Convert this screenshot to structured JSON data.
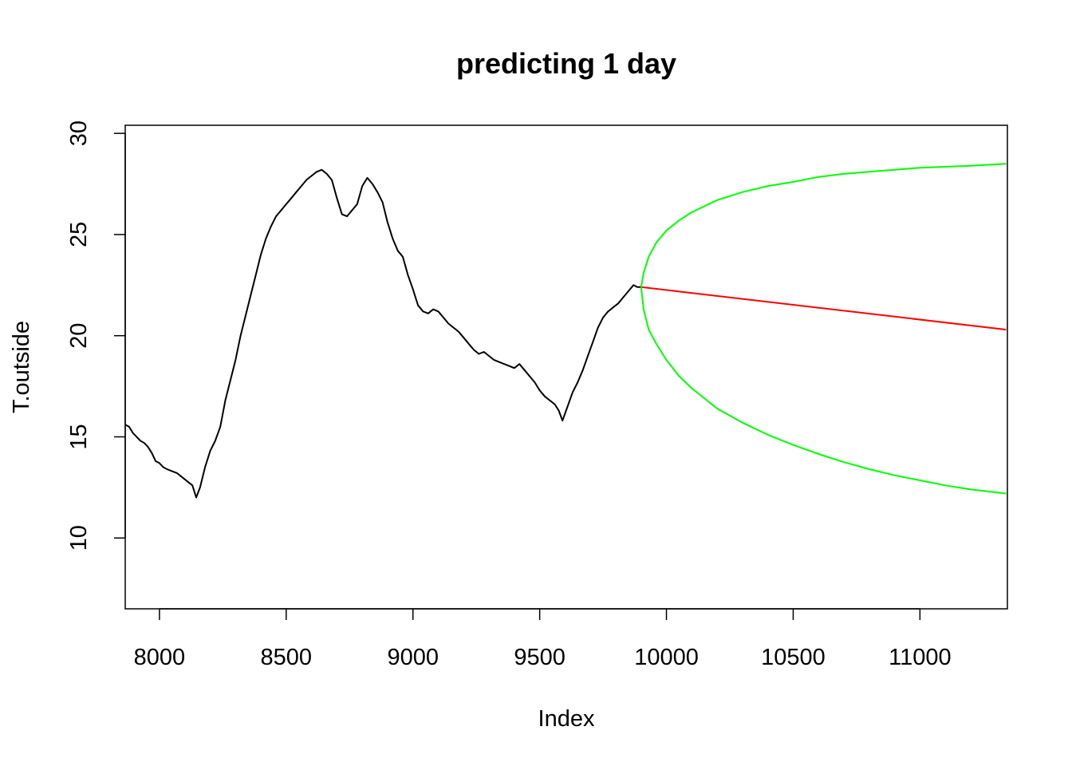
{
  "chart_data": {
    "type": "line",
    "title": "predicting 1 day",
    "xlabel": "Index",
    "ylabel": "T.outside",
    "xlim": [
      7865,
      11345
    ],
    "ylim": [
      6.5,
      30.4
    ],
    "x_ticks": [
      8000,
      8500,
      9000,
      9500,
      10000,
      10500,
      11000
    ],
    "x_tick_labels": [
      "8000",
      "8500",
      "9000",
      "9500",
      "10000",
      "10500",
      "11000"
    ],
    "y_ticks": [
      10,
      15,
      20,
      25,
      30
    ],
    "y_tick_labels": [
      "10",
      "15",
      "20",
      "25",
      "30"
    ],
    "grid": false,
    "legend": "none",
    "series": [
      {
        "color": "#000000",
        "x": [
          7865,
          7880,
          7895,
          7910,
          7925,
          7940,
          7955,
          7970,
          7985,
          8000,
          8015,
          8030,
          8050,
          8070,
          8090,
          8110,
          8130,
          8145,
          8160,
          8180,
          8200,
          8220,
          8240,
          8260,
          8280,
          8300,
          8320,
          8340,
          8360,
          8380,
          8400,
          8420,
          8440,
          8460,
          8480,
          8500,
          8520,
          8540,
          8560,
          8580,
          8600,
          8620,
          8640,
          8660,
          8680,
          8700,
          8720,
          8740,
          8760,
          8780,
          8800,
          8820,
          8840,
          8860,
          8880,
          8900,
          8920,
          8940,
          8960,
          8980,
          9000,
          9020,
          9040,
          9060,
          9080,
          9100,
          9120,
          9140,
          9160,
          9180,
          9200,
          9220,
          9240,
          9260,
          9280,
          9300,
          9320,
          9340,
          9360,
          9380,
          9400,
          9420,
          9440,
          9460,
          9480,
          9500,
          9520,
          9540,
          9560,
          9575,
          9590,
          9610,
          9630,
          9650,
          9670,
          9690,
          9710,
          9730,
          9750,
          9770,
          9790,
          9810,
          9830,
          9850,
          9870,
          9885,
          9900
        ],
        "y": [
          15.6,
          15.5,
          15.2,
          15.0,
          14.8,
          14.7,
          14.5,
          14.2,
          13.8,
          13.7,
          13.5,
          13.4,
          13.3,
          13.2,
          13.0,
          12.8,
          12.6,
          12.0,
          12.5,
          13.5,
          14.3,
          14.8,
          15.5,
          16.8,
          17.8,
          18.8,
          20.0,
          21.0,
          22.0,
          23.0,
          24.0,
          24.8,
          25.4,
          25.9,
          26.2,
          26.5,
          26.8,
          27.1,
          27.4,
          27.7,
          27.9,
          28.1,
          28.2,
          28.0,
          27.7,
          26.8,
          26.0,
          25.9,
          26.2,
          26.5,
          27.4,
          27.8,
          27.5,
          27.1,
          26.6,
          25.6,
          24.8,
          24.2,
          23.9,
          23.0,
          22.3,
          21.5,
          21.2,
          21.1,
          21.3,
          21.2,
          20.9,
          20.6,
          20.4,
          20.2,
          19.9,
          19.6,
          19.3,
          19.1,
          19.2,
          19.0,
          18.8,
          18.7,
          18.6,
          18.5,
          18.4,
          18.6,
          18.3,
          18.0,
          17.7,
          17.3,
          17.0,
          16.8,
          16.6,
          16.3,
          15.8,
          16.5,
          17.2,
          17.7,
          18.3,
          19.0,
          19.7,
          20.4,
          20.9,
          21.2,
          21.4,
          21.6,
          21.9,
          22.2,
          22.5,
          22.4,
          22.4
        ]
      },
      {
        "color": "#ff0000",
        "x": [
          9900,
          11340
        ],
        "y": [
          22.4,
          20.3
        ]
      },
      {
        "color": "#00ff00",
        "x": [
          9900,
          9910,
          9930,
          9960,
          10000,
          10050,
          10100,
          10200,
          10300,
          10400,
          10500,
          10600,
          10700,
          10800,
          10900,
          11000,
          11100,
          11200,
          11340
        ],
        "y": [
          22.4,
          23.1,
          23.9,
          24.6,
          25.2,
          25.7,
          26.1,
          26.7,
          27.1,
          27.4,
          27.6,
          27.85,
          28.0,
          28.1,
          28.2,
          28.3,
          28.35,
          28.4,
          28.5
        ]
      },
      {
        "color": "#00ff00",
        "x": [
          9900,
          9910,
          9930,
          9960,
          10000,
          10050,
          10100,
          10200,
          10300,
          10400,
          10500,
          10600,
          10700,
          10800,
          10900,
          11000,
          11100,
          11200,
          11340
        ],
        "y": [
          22.4,
          21.3,
          20.3,
          19.6,
          18.8,
          18.0,
          17.4,
          16.4,
          15.7,
          15.1,
          14.6,
          14.15,
          13.75,
          13.4,
          13.1,
          12.85,
          12.6,
          12.4,
          12.2
        ]
      }
    ]
  }
}
